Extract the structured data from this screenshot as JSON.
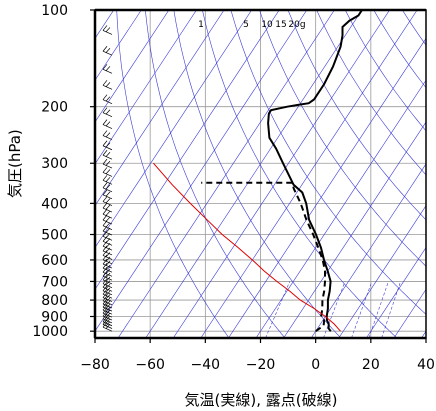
{
  "chart_data": {
    "type": "line",
    "title": "",
    "xlabel": "気温(実線), 露点(破線)",
    "ylabel": "気圧(hPa)",
    "xlim": [
      -80,
      40
    ],
    "ylim": [
      1050,
      100
    ],
    "y_scale": "log",
    "grid": true,
    "x_ticks": [
      "−80",
      "−60",
      "−40",
      "−20",
      "0",
      "20",
      "40"
    ],
    "y_ticks": [
      "100",
      "200",
      "300",
      "400",
      "500",
      "600",
      "700",
      "800",
      "900",
      "1000"
    ],
    "mixing_ratio_labels": [
      "1",
      "5",
      "10",
      "15",
      "20g"
    ],
    "series": [
      {
        "name": "",
        "role": "temperature",
        "style": "solid",
        "color": "#000000",
        "points": [
          [
            5.5,
            1000
          ],
          [
            4,
            980
          ],
          [
            3,
            950
          ],
          [
            1.5,
            925
          ],
          [
            0.5,
            900
          ],
          [
            -1,
            850
          ],
          [
            -3,
            800
          ],
          [
            -4.5,
            750
          ],
          [
            -6.5,
            700
          ],
          [
            -10,
            650
          ],
          [
            -14,
            600
          ],
          [
            -18,
            550
          ],
          [
            -23,
            500
          ],
          [
            -29,
            450
          ],
          [
            -34,
            400
          ],
          [
            -38,
            370
          ],
          [
            -43,
            350
          ],
          [
            -52,
            300
          ],
          [
            -58,
            270
          ],
          [
            -63,
            250
          ],
          [
            -67,
            225
          ],
          [
            -69,
            210
          ],
          [
            -69,
            205
          ],
          [
            -64,
            200
          ],
          [
            -60,
            197
          ],
          [
            -57,
            195
          ],
          [
            -56,
            190
          ],
          [
            -56,
            170
          ],
          [
            -57,
            150
          ],
          [
            -59,
            130
          ],
          [
            -61,
            120
          ],
          [
            -63,
            113
          ],
          [
            -62,
            108
          ],
          [
            -60,
            104
          ],
          [
            -60,
            100
          ]
        ]
      },
      {
        "name": "",
        "role": "dewpoint",
        "style": "dashed",
        "color": "#000000",
        "points": [
          [
            0,
            1000
          ],
          [
            1.5,
            960
          ],
          [
            0.5,
            925
          ],
          [
            -1.5,
            900
          ],
          [
            -3,
            850
          ],
          [
            -5,
            800
          ],
          [
            -6.5,
            750
          ],
          [
            -8.5,
            700
          ],
          [
            -11,
            650
          ],
          [
            -14.5,
            600
          ],
          [
            -19,
            550
          ],
          [
            -24,
            500
          ],
          [
            -30,
            450
          ],
          [
            -36,
            400
          ],
          [
            -42,
            360
          ],
          [
            -44,
            345
          ],
          [
            -70,
            345
          ],
          [
            -77,
            345
          ]
        ]
      },
      {
        "name": "",
        "role": "reference-line",
        "style": "solid",
        "color": "#e00000",
        "points": [
          [
            9,
            1000
          ],
          [
            5,
            950
          ],
          [
            0,
            900
          ],
          [
            -6,
            850
          ],
          [
            -13,
            800
          ],
          [
            -19,
            750
          ],
          [
            -26,
            700
          ],
          [
            -33,
            650
          ],
          [
            -40,
            600
          ],
          [
            -48,
            550
          ],
          [
            -57,
            500
          ],
          [
            -66,
            450
          ],
          [
            -76,
            400
          ],
          [
            -87,
            350
          ],
          [
            -99,
            300
          ]
        ]
      }
    ],
    "wind_barbs": "column of wind barbs along the left edge from 1000 to 100 hPa"
  }
}
